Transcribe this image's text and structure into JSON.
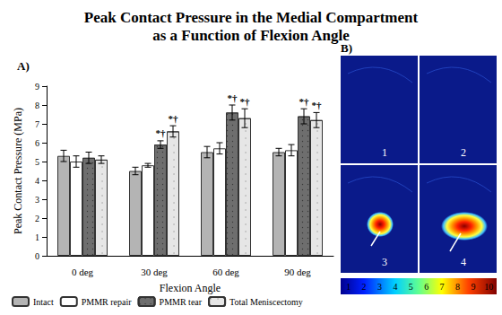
{
  "chart_data": {
    "type": "bar",
    "title": "Peak Contact Pressure in the Medial Compartment\nas a Function of Flexion Angle",
    "panel_label": "A)",
    "x_label": "Flexion Angle",
    "y_label": "Peak Contact Pressure (MPa)",
    "categories": [
      "0 deg",
      "30 deg",
      "60 deg",
      "90 deg"
    ],
    "series": [
      {
        "name": "Intact",
        "color": "#b4b4b4",
        "values": [
          5.3,
          4.5,
          5.5,
          5.5
        ],
        "errors": [
          0.3,
          0.2,
          0.3,
          0.2
        ],
        "annotations": [
          null,
          null,
          null,
          null
        ]
      },
      {
        "name": "PMMR repair",
        "color": "#ffffff",
        "values": [
          5.0,
          4.8,
          5.7,
          5.6
        ],
        "errors": [
          0.3,
          0.1,
          0.3,
          0.3
        ],
        "annotations": [
          null,
          null,
          null,
          null
        ]
      },
      {
        "name": "PMMR tear",
        "color": "#6e6e6e",
        "values": [
          5.2,
          5.9,
          7.6,
          7.4
        ],
        "errors": [
          0.3,
          0.2,
          0.4,
          0.4
        ],
        "annotations": [
          null,
          "*†",
          "*†",
          "*†"
        ]
      },
      {
        "name": "Total Meniscectomy",
        "color": "#e6e6e6",
        "values": [
          5.1,
          6.6,
          7.3,
          7.2
        ],
        "errors": [
          0.2,
          0.3,
          0.5,
          0.4
        ],
        "annotations": [
          null,
          "*†",
          "*†",
          "*†"
        ]
      }
    ],
    "ylim": [
      0,
      9
    ],
    "yticks": [
      0,
      1,
      2,
      3,
      4,
      5,
      6,
      7,
      8,
      9
    ],
    "grid": false,
    "legend": "bottom"
  },
  "panel_b": {
    "label": "B)",
    "images": [
      "1",
      "2",
      "3",
      "4"
    ],
    "colorbar_ticks": [
      1,
      2,
      3,
      4,
      5,
      6,
      7,
      8,
      9,
      10
    ]
  }
}
